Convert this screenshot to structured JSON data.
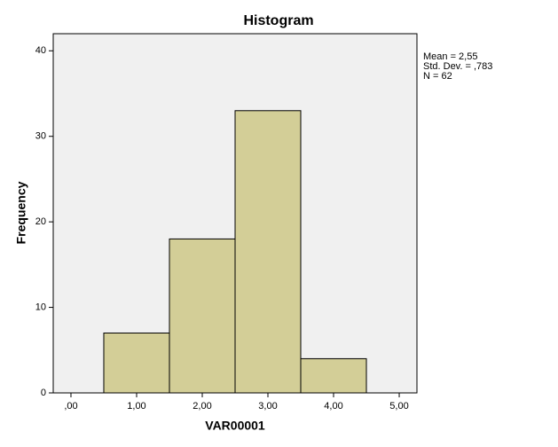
{
  "chart_data": {
    "type": "histogram",
    "title": "Histogram",
    "x_label": "VAR00001",
    "y_label": "Frequency",
    "bins": [
      0.5,
      1.5,
      2.5,
      3.5,
      4.5
    ],
    "counts": [
      7,
      18,
      33,
      4
    ],
    "color": "#d3ce97",
    "xlim": [
      -0.27,
      5.27
    ],
    "xticks": [
      {
        "value": 0,
        "label": ",00"
      },
      {
        "value": 1,
        "label": "1,00"
      },
      {
        "value": 2,
        "label": "2,00"
      },
      {
        "value": 3,
        "label": "3,00"
      },
      {
        "value": 4,
        "label": "4,00"
      },
      {
        "value": 5,
        "label": "5,00"
      }
    ],
    "ylim": [
      0,
      42
    ],
    "yticks": [
      0,
      10,
      20,
      30,
      40
    ],
    "annotations": [
      "Mean = 2,55",
      "Std. Dev. = ,783",
      "N = 62"
    ]
  }
}
